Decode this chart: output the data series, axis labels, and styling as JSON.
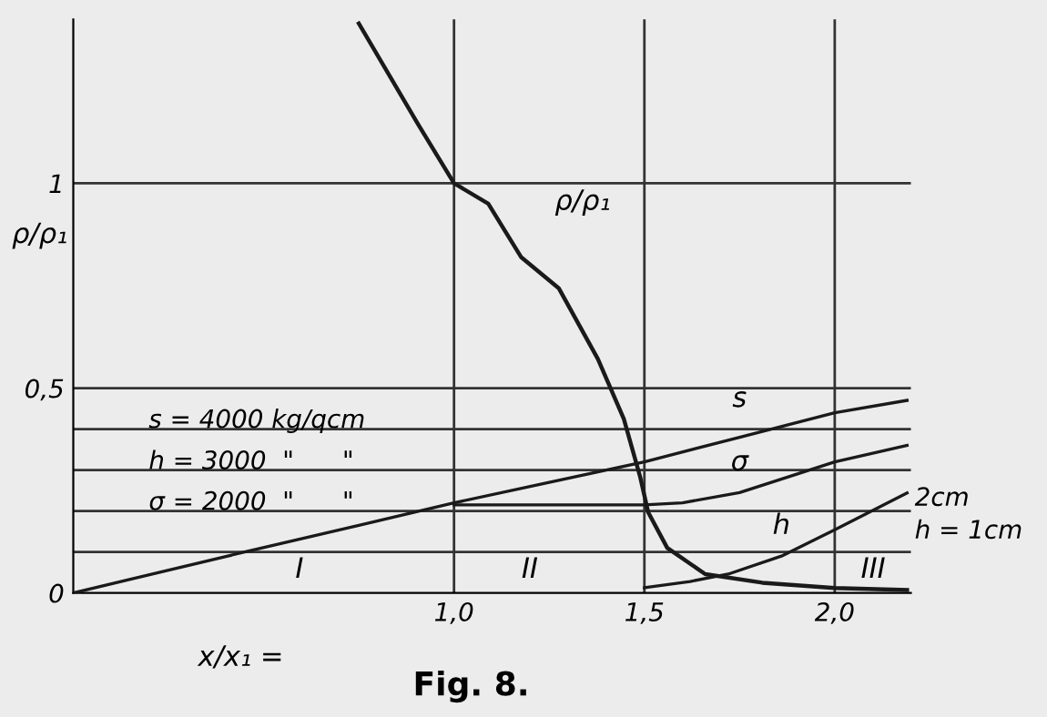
{
  "chart_data": {
    "type": "line",
    "title": "Fig. 8.",
    "xlabel": "x/x₁ =",
    "ylabel": "ρ/ρ₁",
    "xlim": [
      0,
      2.2
    ],
    "ylim": [
      0,
      1.4
    ],
    "xticks": [
      {
        "value": 1.0,
        "label": "1,0"
      },
      {
        "value": 1.5,
        "label": "1,5"
      },
      {
        "value": 2.0,
        "label": "2,0"
      }
    ],
    "yticks": [
      0,
      {
        "value": 0.5,
        "label": "0,5"
      },
      1
    ],
    "grid": false,
    "legend": false,
    "marker": "none",
    "line_style": "solid",
    "ref_lines": [
      {
        "axis": "y",
        "value": 0.1,
        "color": "#333333"
      },
      {
        "axis": "y",
        "value": 0.2,
        "color": "#333333"
      },
      {
        "axis": "y",
        "value": 0.3,
        "color": "#333333"
      },
      {
        "axis": "y",
        "value": 0.4,
        "color": "#333333"
      },
      {
        "axis": "y",
        "value": 0.5,
        "color": "#333333"
      },
      {
        "axis": "y",
        "value": 1,
        "color": "#333333"
      },
      {
        "axis": "x",
        "value": 1.0,
        "color": "#333333"
      },
      {
        "axis": "x",
        "value": 1.5,
        "color": "#333333"
      },
      {
        "axis": "x",
        "value": 2.0,
        "color": "#333333"
      }
    ],
    "series": [
      {
        "name": "ρ/ρ₁",
        "color": "#1a1a1a",
        "x": [
          0.75,
          0.905,
          1.0,
          1.09,
          1.176,
          1.275,
          1.378,
          1.446,
          1.489,
          1.51,
          1.56,
          1.66,
          1.81,
          2.0,
          2.19
        ],
        "values": [
          1.39,
          1.145,
          1.0,
          0.95,
          0.82,
          0.744,
          0.571,
          0.425,
          0.283,
          0.197,
          0.11,
          0.046,
          0.025,
          0.012,
          0.007
        ]
      },
      {
        "name": "s",
        "color": "#1a1a1a",
        "x": [
          0,
          0.18,
          0.45,
          0.75,
          1.0,
          1.2,
          1.5,
          1.75,
          2.0,
          2.19
        ],
        "values": [
          0,
          0.04,
          0.1,
          0.165,
          0.22,
          0.26,
          0.32,
          0.38,
          0.44,
          0.47
        ]
      },
      {
        "name": "σ",
        "color": "#1a1a1a",
        "x": [
          1.0,
          1.5,
          1.6,
          1.75,
          2.0,
          2.19
        ],
        "values": [
          0.215,
          0.215,
          0.22,
          0.245,
          0.32,
          0.36
        ]
      },
      {
        "name": "h",
        "color": "#1a1a1a",
        "x": [
          1.5,
          1.62,
          1.72,
          1.86,
          2.0,
          2.19
        ],
        "values": [
          0.013,
          0.028,
          0.046,
          0.09,
          0.154,
          0.244
        ]
      }
    ],
    "annotations": [
      "s = 4000 kg/qcm",
      "h = 3000  \"      \"",
      "σ = 2000  \"      \"",
      "I",
      "II",
      "III",
      {
        "text": "2cm",
        "x": 2.2,
        "y": 0.2
      },
      {
        "text": "h = 1cm",
        "x": 2.2,
        "y": 0.12
      }
    ]
  }
}
